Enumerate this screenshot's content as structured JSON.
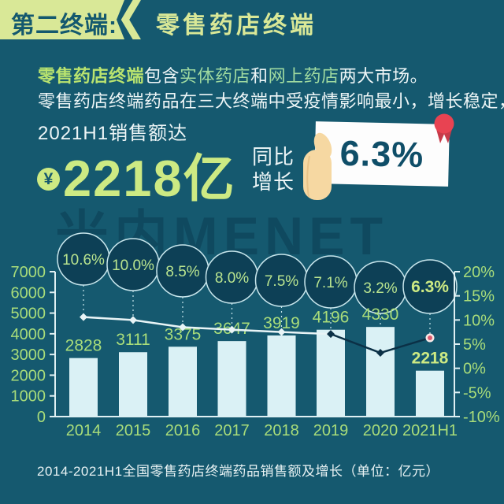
{
  "header": {
    "tag": "第二终端:",
    "title": "零售药店终端"
  },
  "intro": {
    "line1": [
      {
        "t": "零售药店终端"
      },
      {
        "t": "包含"
      },
      {
        "t": "实体药店"
      },
      {
        "t": "和"
      },
      {
        "t": "网上药店"
      },
      {
        "t": "两大市场。"
      }
    ],
    "line2": "零售药店终端药品在三大终端中受疫情影响最小，增长稳定，"
  },
  "highlight": {
    "prefix": "2021H1销售额达",
    "currency_symbol": "¥",
    "amount": "2218亿",
    "yoy_label_line1": "同比",
    "yoy_label_line2": "增长",
    "yoy_value": "6.3%"
  },
  "watermark": "米内MENET",
  "caption": "2014-2021H1全国零售药店终端药品销售额及增长（单位：亿元）",
  "colors": {
    "background": "#15596f",
    "header_band_green": "#d9e897",
    "accent_green": "#a9dd7a",
    "accent_bright": "#cdea83",
    "bubble_text": "#b9e48f",
    "bar_fill": "#daf1f5",
    "bubble_fill": "#0d4056",
    "bubble_stroke": "#c8e6ec",
    "axis_line": "#dff0f3",
    "line_light": "#e8f4f6",
    "line_dark": "#0b3046",
    "end_marker_ring": "#f7e9e7",
    "end_marker_core": "#dd5a6e",
    "rosette_red": "#e84352",
    "rosette_dark": "#c73a49",
    "hand_skin": "#f6d8a2",
    "white_text": "#eef6f7"
  },
  "chart_data": {
    "type": "bar",
    "title": "2014-2021H1全国零售药店终端药品销售额及增长（单位：亿元）",
    "categories": [
      "2014",
      "2015",
      "2016",
      "2017",
      "2018",
      "2019",
      "2020",
      "2021H1"
    ],
    "series": [
      {
        "name": "销售额(亿元)",
        "type": "bar",
        "values": [
          2828,
          3111,
          3375,
          3647,
          3919,
          4196,
          4330,
          2218
        ]
      },
      {
        "name": "同比增长(%)",
        "type": "line",
        "values": [
          10.6,
          10.0,
          8.5,
          8.0,
          7.5,
          7.1,
          3.2,
          6.3
        ]
      }
    ],
    "bar_labels": [
      "2828",
      "3111",
      "3375",
      "3647",
      "3919",
      "4196",
      "4330",
      "2218"
    ],
    "bubble_labels": [
      "10.6%",
      "10.0%",
      "8.5%",
      "8.0%",
      "7.5%",
      "7.1%",
      "3.2%",
      "6.3%"
    ],
    "left_axis": {
      "min": 0,
      "max": 7000,
      "step": 1000,
      "labels": [
        "7000",
        "6000",
        "5000",
        "4000",
        "3000",
        "2000",
        "1000",
        "0"
      ]
    },
    "right_axis": {
      "min": -10,
      "max": 20,
      "step": 5,
      "labels": [
        "20%",
        "15%",
        "10%",
        "5%",
        "0%",
        "-5%",
        "-10%"
      ]
    },
    "grid": false,
    "legend": "none"
  }
}
